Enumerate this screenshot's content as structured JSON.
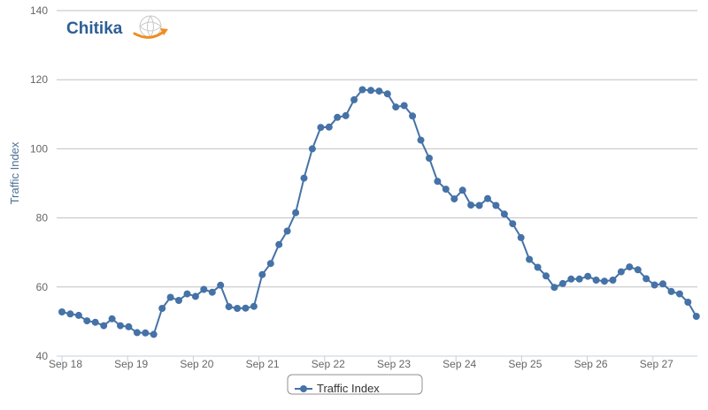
{
  "logo": {
    "text": "Chitika"
  },
  "chart_data": {
    "type": "line",
    "title": "",
    "xlabel": "",
    "ylabel": "Traffic Index",
    "ylim": [
      40,
      140
    ],
    "yticks": [
      40,
      60,
      80,
      100,
      120,
      140
    ],
    "xticks": [
      "Sep 18",
      "Sep 19",
      "Sep 20",
      "Sep 21",
      "Sep 22",
      "Sep 23",
      "Sep 24",
      "Sep 25",
      "Sep 26",
      "Sep 27"
    ],
    "x_unit": "days from Sep 18",
    "grid": true,
    "legend_position": "bottom-center",
    "series_color": "#4572a7",
    "series": [
      {
        "name": "Traffic Index",
        "values": [
          52.8,
          52.2,
          51.8,
          50.2,
          49.8,
          48.8,
          50.8,
          48.8,
          48.5,
          46.8,
          46.7,
          46.3,
          53.8,
          57.0,
          56.1,
          58.0,
          57.3,
          59.3,
          58.5,
          60.5,
          54.3,
          53.8,
          53.9,
          54.4,
          63.6,
          66.8,
          72.3,
          76.2,
          81.5,
          91.5,
          100.0,
          106.2,
          106.3,
          109.1,
          109.6,
          114.2,
          117.1,
          116.9,
          116.7,
          115.9,
          112.1,
          112.5,
          109.5,
          102.5,
          97.3,
          90.6,
          88.3,
          85.5,
          88.0,
          83.7,
          83.6,
          85.6,
          83.6,
          81.1,
          78.3,
          74.3,
          68.0,
          65.7,
          63.2,
          59.9,
          61.0,
          62.3,
          62.3,
          63.1,
          62.0,
          61.7,
          62.0,
          64.4,
          65.8,
          65.0,
          62.4,
          60.6,
          60.9,
          58.7,
          58.0,
          55.6,
          51.5
        ]
      }
    ]
  }
}
